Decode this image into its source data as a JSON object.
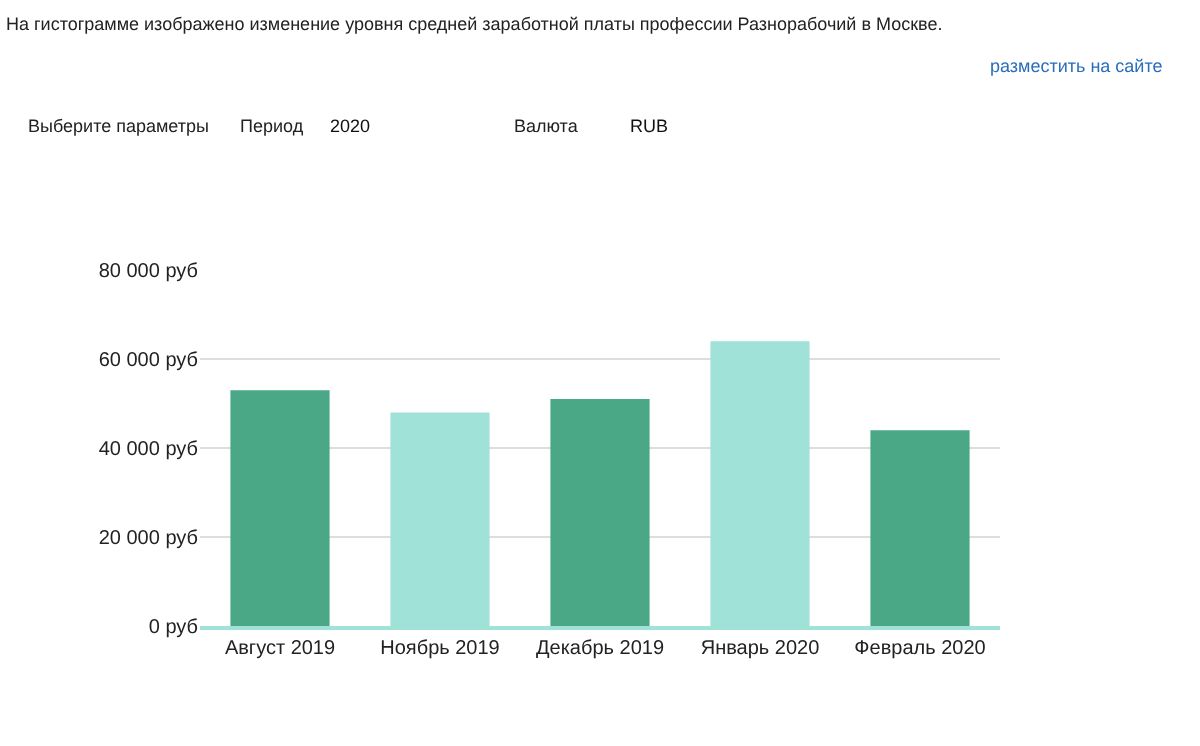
{
  "chart_data": {
    "type": "bar",
    "title": "На гистограмме изображено изменение уровня средней заработной платы профессии Разнорабочий в Москве.",
    "categories": [
      "Август 2019",
      "Ноябрь 2019",
      "Декабрь 2019",
      "Январь 2020",
      "Февраль 2020"
    ],
    "values": [
      53000,
      48000,
      51000,
      64000,
      44000
    ],
    "colors": [
      "#4ba886",
      "#a0e1d8",
      "#4ba886",
      "#a0e1d8",
      "#4ba886"
    ],
    "ylim": [
      0,
      80000
    ],
    "yticks": [
      {
        "value": 0,
        "label": "0 руб"
      },
      {
        "value": 20000,
        "label": "20 000 руб"
      },
      {
        "value": 40000,
        "label": "40 000 руб"
      },
      {
        "value": 60000,
        "label": "60 000 руб"
      },
      {
        "value": 80000,
        "label": "80 000 руб"
      }
    ],
    "grid": "y",
    "annotations": [
      "разместить на сайте",
      "Выберите параметры",
      "Период",
      "2020",
      "Валюта",
      "RUB"
    ]
  }
}
